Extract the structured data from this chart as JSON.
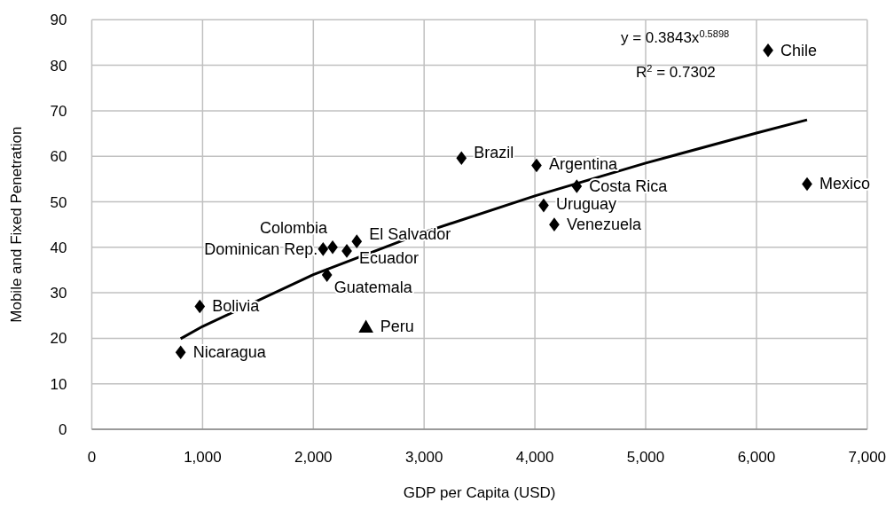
{
  "chart_data": {
    "type": "scatter",
    "xlabel": "GDP per Capita (USD)",
    "ylabel": "Mobile and Fixed Penetration",
    "xlim": [
      0,
      7000
    ],
    "xticks": [
      {
        "value": 0,
        "label": "0"
      },
      {
        "value": 1000,
        "label": "1,000"
      },
      {
        "value": 2000,
        "label": "2,000"
      },
      {
        "value": 3000,
        "label": "3,000"
      },
      {
        "value": 4000,
        "label": "4,000"
      },
      {
        "value": 5000,
        "label": "5,000"
      },
      {
        "value": 6000,
        "label": "6,000"
      },
      {
        "value": 7000,
        "label": "7,000"
      }
    ],
    "ylim": [
      0,
      90
    ],
    "yticks": [
      0,
      10,
      20,
      30,
      40,
      50,
      60,
      70,
      80,
      90
    ],
    "grid": true,
    "series": [
      {
        "marker": "diamond",
        "color": "#000000",
        "x": [
          802,
          975,
          2088,
          2174,
          2302,
          2392,
          2123,
          3337,
          4015,
          4378,
          4079,
          4175,
          6105,
          6457
        ],
        "values": [
          16.9,
          27.0,
          39.6,
          40.0,
          39.2,
          41.3,
          33.9,
          59.6,
          58.0,
          53.4,
          49.2,
          45.0,
          83.3,
          53.9
        ]
      },
      {
        "marker": "triangle",
        "color": "#000000",
        "x": [
          2475
        ],
        "values": [
          22.2
        ]
      },
      {
        "type": "line",
        "marker": "none",
        "line_style": "solid",
        "color": "#000000",
        "x": [
          802,
          1000,
          2000,
          3000,
          4000,
          5000,
          6000,
          6457
        ],
        "values": [
          19.9,
          22.6,
          34.0,
          43.3,
          51.3,
          58.5,
          65.1,
          68.0
        ]
      }
    ],
    "annotations": [
      {
        "text": "Nicaragua",
        "x": 802,
        "y": 16.9
      },
      {
        "text": "Bolivia",
        "x": 975,
        "y": 27.0
      },
      {
        "text": "Dominican Rep.",
        "x": 2088,
        "y": 39.6
      },
      {
        "text": "Colombia",
        "x": 2174,
        "y": 40.0
      },
      {
        "text": "Ecuador",
        "x": 2302,
        "y": 39.2
      },
      {
        "text": "El Salvador",
        "x": 2392,
        "y": 41.3
      },
      {
        "text": "Guatemala",
        "x": 2123,
        "y": 33.9
      },
      {
        "text": "Brazil",
        "x": 3337,
        "y": 59.6
      },
      {
        "text": "Argentina",
        "x": 4015,
        "y": 58.0
      },
      {
        "text": "Costa Rica",
        "x": 4378,
        "y": 53.4
      },
      {
        "text": "Uruguay",
        "x": 4079,
        "y": 49.2
      },
      {
        "text": "Venezuela",
        "x": 4175,
        "y": 45.0
      },
      {
        "text": "Chile",
        "x": 6105,
        "y": 83.3
      },
      {
        "text": "Mexico",
        "x": 6457,
        "y": 53.9
      },
      {
        "text": "Peru",
        "x": 2475,
        "y": 22.2
      },
      "y = 0.3843x$^{0.5898}$",
      "R$^{2}$ = 0.7302"
    ]
  }
}
